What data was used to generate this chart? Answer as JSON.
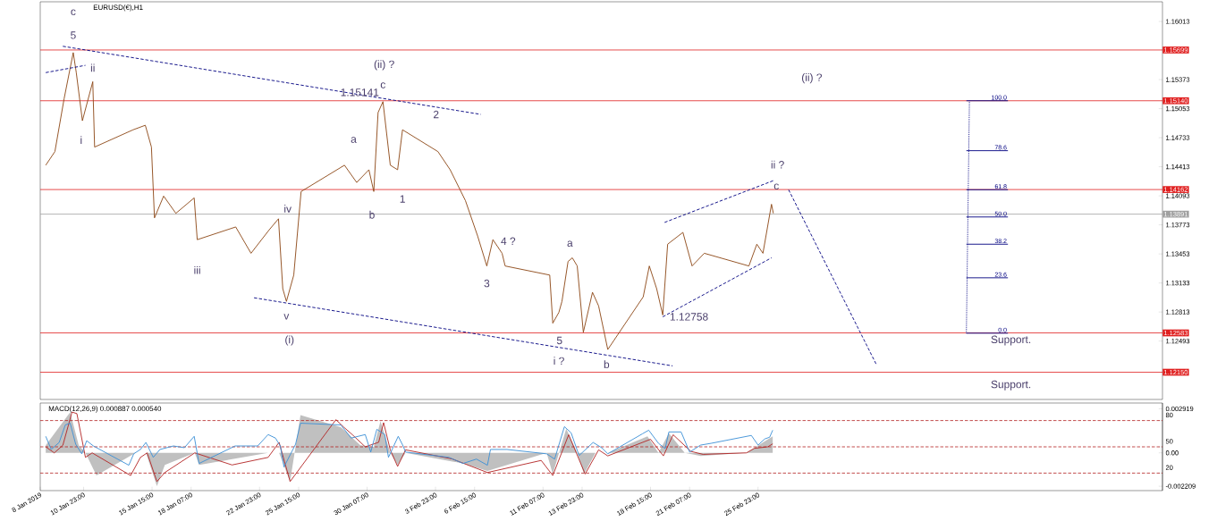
{
  "chart_data": [
    {
      "type": "line",
      "title": "EURUSD(€),H1",
      "xlim": [
        "2019-01-08T00:00",
        "2019-03-25T13:00"
      ],
      "ylim": [
        1.1185,
        1.1623
      ],
      "tick_labels": "y",
      "yticks": [
        1.16013,
        1.15373,
        1.15053,
        1.14733,
        1.14413,
        1.14093,
        1.13773,
        1.13453,
        1.13133,
        1.12813,
        1.12493
      ],
      "series": [
        {
          "color": "#8b4513",
          "x": [
            "2019-01-08T09:00",
            "2019-01-09T00:00",
            "2019-01-09T15:00",
            "2019-01-10T06:00",
            "2019-01-10T11:00",
            "2019-01-10T21:00",
            "2019-01-11T14:00",
            "2019-01-11T17:00",
            "2019-01-14T08:00",
            "2019-01-15T04:00",
            "2019-01-15T14:00",
            "2019-01-15T19:00",
            "2019-01-16T10:00",
            "2019-01-17T06:00",
            "2019-01-18T12:00",
            "2019-01-18T17:00",
            "2019-01-21T08:00",
            "2019-01-22T09:00",
            "2019-01-23T15:00",
            "2019-01-24T06:00",
            "2019-01-24T13:00",
            "2019-01-24T19:00",
            "2019-01-25T07:00",
            "2019-01-25T19:00",
            "2019-01-28T18:00",
            "2019-01-29T14:00",
            "2019-01-30T10:00",
            "2019-01-30T18:00",
            "2019-01-31T01:00",
            "2019-01-31T09:00",
            "2019-01-31T21:00",
            "2019-02-01T09:00",
            "2019-02-01T17:00",
            "2019-02-04T03:00",
            "2019-02-04T23:00",
            "2019-02-06T00:00",
            "2019-02-06T20:00",
            "2019-02-07T11:00",
            "2019-02-07T21:00",
            "2019-02-08T12:00",
            "2019-02-08T17:00",
            "2019-02-11T18:00",
            "2019-02-11T23:00",
            "2019-02-12T09:00",
            "2019-02-12T14:00",
            "2019-02-13T00:00",
            "2019-02-13T07:00",
            "2019-02-13T15:00",
            "2019-02-14T01:00",
            "2019-02-14T16:00",
            "2019-02-15T02:00",
            "2019-02-15T17:00",
            "2019-02-18T03:00",
            "2019-02-18T13:00",
            "2019-02-19T01:00",
            "2019-02-19T11:00",
            "2019-02-19T19:00",
            "2019-02-20T20:00",
            "2019-02-21T11:00",
            "2019-02-22T07:00",
            "2019-02-25T08:00",
            "2019-02-25T21:00",
            "2019-02-26T07:00",
            "2019-02-26T21:00",
            "2019-02-27T00:00"
          ],
          "values": [
            1.1443,
            1.1458,
            1.1516,
            1.1567,
            1.1545,
            1.1492,
            1.1535,
            1.1463,
            1.1482,
            1.1487,
            1.1463,
            1.1385,
            1.1409,
            1.139,
            1.1407,
            1.1361,
            1.1375,
            1.1346,
            1.1372,
            1.1384,
            1.1307,
            1.1293,
            1.1322,
            1.1414,
            1.1443,
            1.1424,
            1.1438,
            1.1414,
            1.1501,
            1.1513,
            1.1443,
            1.1438,
            1.1482,
            1.1458,
            1.1438,
            1.1404,
            1.1365,
            1.1332,
            1.1361,
            1.1346,
            1.1332,
            1.1322,
            1.1269,
            1.1281,
            1.1293,
            1.1337,
            1.1341,
            1.1332,
            1.1259,
            1.1303,
            1.1288,
            1.124,
            1.1298,
            1.1332,
            1.1307,
            1.1278,
            1.1356,
            1.1369,
            1.1332,
            1.1346,
            1.1332,
            1.1356,
            1.1346,
            1.14,
            1.139
          ]
        },
        {
          "color": "#000080",
          "line_style": "dashed",
          "x": [
            "2019-01-09T13:00",
            "2019-02-07T01:00"
          ],
          "values": [
            1.1574,
            1.1499
          ]
        },
        {
          "color": "#000080",
          "line_style": "dashed",
          "x": [
            "2019-01-08T09:00",
            "2019-01-11T02:00"
          ],
          "values": [
            1.1545,
            1.1553
          ]
        },
        {
          "color": "#000080",
          "line_style": "dashed",
          "x": [
            "2019-01-22T14:00",
            "2019-02-20T03:00"
          ],
          "values": [
            1.1297,
            1.1222
          ]
        },
        {
          "color": "#000080",
          "line_style": "dashed",
          "x": [
            "2019-02-19T14:00",
            "2019-02-27T00:00"
          ],
          "values": [
            1.138,
            1.1426
          ]
        },
        {
          "color": "#000080",
          "line_style": "dashed",
          "x": [
            "2019-02-19T11:00",
            "2019-02-26T21:00"
          ],
          "values": [
            1.1276,
            1.1341
          ]
        },
        {
          "color": "#000080",
          "line_style": "dashed",
          "x": [
            "2019-02-28T01:00",
            "2019-03-06T01:00"
          ],
          "values": [
            1.1416,
            1.1223
          ]
        },
        {
          "color": "#000080",
          "line_style": "dotted",
          "x": [
            "2019-03-12T04:00",
            "2019-03-12T09:00"
          ],
          "values": [
            1.1258,
            1.1514
          ]
        },
        {
          "name": "100.0",
          "color": "#000080",
          "x": [
            "2019-03-12T04:00",
            "2019-03-15T00:00"
          ],
          "values": [
            1.1514,
            1.1514
          ]
        },
        {
          "name": "78.6",
          "color": "#000080",
          "x": [
            "2019-03-12T04:00",
            "2019-03-15T00:00"
          ],
          "values": [
            1.1459,
            1.1459
          ]
        },
        {
          "name": "61.8",
          "color": "#000080",
          "x": [
            "2019-03-12T04:00",
            "2019-03-15T00:00"
          ],
          "values": [
            1.1416,
            1.1416
          ]
        },
        {
          "name": "50.0",
          "color": "#000080",
          "x": [
            "2019-03-12T04:00",
            "2019-03-15T00:00"
          ],
          "values": [
            1.1386,
            1.1386
          ]
        },
        {
          "name": "38.2",
          "color": "#000080",
          "x": [
            "2019-03-12T04:00",
            "2019-03-15T00:00"
          ],
          "values": [
            1.1356,
            1.1356
          ]
        },
        {
          "name": "23.6",
          "color": "#000080",
          "x": [
            "2019-03-12T04:00",
            "2019-03-15T00:00"
          ],
          "values": [
            1.1319,
            1.1319
          ]
        },
        {
          "name": "0.0",
          "color": "#000080",
          "x": [
            "2019-03-12T04:00",
            "2019-03-15T00:00"
          ],
          "values": [
            1.1258,
            1.1258
          ]
        }
      ],
      "ref_lines": [
        {
          "axis": "y",
          "value": 1.15699,
          "label": "1.15699",
          "color": "#e02020"
        },
        {
          "axis": "y",
          "value": 1.1514,
          "label": "1.15140",
          "color": "#e02020"
        },
        {
          "axis": "y",
          "value": 1.14162,
          "label": "1.14162",
          "color": "#e02020"
        },
        {
          "axis": "y",
          "value": 1.13891,
          "label": "1.13891",
          "color": "#a0a0a0"
        },
        {
          "axis": "y",
          "value": 1.12583,
          "label": "1.12583",
          "color": "#e02020"
        },
        {
          "axis": "y",
          "value": 1.1215,
          "label": "1.12150",
          "color": "#e02020"
        }
      ],
      "annotations": [
        "c",
        "5",
        "ii",
        "i",
        "iii",
        "iv",
        "v",
        "(i)",
        "a",
        "b",
        "1.15141",
        "c",
        "(ii) ?",
        "2",
        "1",
        "3",
        "4 ?",
        "a",
        "5",
        "i ?",
        "b",
        "1.12758",
        "ii ?",
        "c",
        "(ii) ?",
        "Support.",
        "Support."
      ]
    },
    {
      "type": "line",
      "title": "MACD(12,26,9) 0.000887 0.000540",
      "xlim": [
        "2019-01-08T00:00",
        "2019-03-25T13:00"
      ],
      "ylim": [
        -0.0025,
        0.0033
      ],
      "xticks": [
        {
          "value": "2019-01-08",
          "label": "8 Jan 2019"
        },
        {
          "value": "2019-01-10T23:00",
          "label": "10 Jan 23:00"
        },
        {
          "value": "2019-01-15T15:00",
          "label": "15 Jan 15:00"
        },
        {
          "value": "2019-01-18T07:00",
          "label": "18 Jan 07:00"
        },
        {
          "value": "2019-01-22T23:00",
          "label": "22 Jan 23:00"
        },
        {
          "value": "2019-01-25T15:00",
          "label": "25 Jan 15:00"
        },
        {
          "value": "2019-01-30T07:00",
          "label": "30 Jan 07:00"
        },
        {
          "value": "2019-02-03T23:00",
          "label": "3 Feb 23:00"
        },
        {
          "value": "2019-02-06T15:00",
          "label": "6 Feb 15:00"
        },
        {
          "value": "2019-02-11T07:00",
          "label": "11 Feb 07:00"
        },
        {
          "value": "2019-02-13T23:00",
          "label": "13 Feb 23:00"
        },
        {
          "value": "2019-02-18T15:00",
          "label": "18 Feb 15:00"
        },
        {
          "value": "2019-02-21T07:00",
          "label": "21 Feb 07:00"
        },
        {
          "value": "2019-02-25T23:00",
          "label": "25 Feb 23:00"
        }
      ],
      "yticks": [
        0.002919,
        {
          "value": 0,
          "label": "0.00"
        },
        -0.002209
      ],
      "y2lim": [
        0,
        100
      ],
      "y2ticks": [
        20,
        50,
        80
      ],
      "series": [
        {
          "type": "area",
          "color": "#c0c0c0",
          "x": [
            "2019-01-08T09:00",
            "2019-01-10T01:00",
            "2019-01-10T15:00",
            "2019-01-11T02:00",
            "2019-01-11T20:00",
            "2019-01-14T12:00",
            "2019-01-15T05:00",
            "2019-01-15T23:00",
            "2019-01-16T12:00",
            "2019-01-18T13:00",
            "2019-01-18T20:00",
            "2019-01-23T13:00",
            "2019-01-24T07:00",
            "2019-01-25T01:00",
            "2019-01-25T18:00",
            "2019-01-28T12:00",
            "2019-01-29T20:00",
            "2019-01-30T18:00",
            "2019-01-31T05:00",
            "2019-01-31T21:00",
            "2019-02-01T09:00",
            "2019-02-01T22:00",
            "2019-02-05T20:00",
            "2019-02-07T12:00",
            "2019-02-11T13:00",
            "2019-02-11T23:00",
            "2019-02-12T21:00",
            "2019-02-13T15:00",
            "2019-02-14T02:00",
            "2019-02-14T21:00",
            "2019-02-15T17:00",
            "2019-02-18T10:00",
            "2019-02-19T04:00",
            "2019-02-19T21:00",
            "2019-02-20T23:00",
            "2019-02-22T01:00",
            "2019-02-25T04:00",
            "2019-02-26T23:00"
          ],
          "values": [
            0.0005,
            0.0027,
            0.0005,
            0,
            -0.0015,
            0,
            0,
            -0.0022,
            -0.0008,
            0,
            -0.0008,
            0,
            0,
            -0.0019,
            0.0025,
            0.0017,
            0.0005,
            0.0004,
            0.0021,
            0,
            -0.0008,
            0,
            -0.0007,
            -0.0012,
            0,
            -0.0014,
            0.0016,
            0,
            -0.0014,
            0,
            0,
            0.0011,
            0,
            0.0013,
            0,
            -0.0002,
            0,
            0.0011
          ]
        },
        {
          "color": "#b22222",
          "x": [
            "2019-01-08T09:00",
            "2019-01-08T23:00",
            "2019-01-09T13:00",
            "2019-01-10T04:00",
            "2019-01-10T12:00",
            "2019-01-11T02:00",
            "2019-01-11T13:00",
            "2019-01-14T04:00",
            "2019-01-14T20:00",
            "2019-01-15T07:00",
            "2019-01-15T23:00",
            "2019-01-16T12:00",
            "2019-01-18T13:00",
            "2019-01-21T02:00",
            "2019-01-23T13:00",
            "2019-01-24T07:00",
            "2019-01-25T01:00",
            "2019-01-28T04:00",
            "2019-01-28T17:00",
            "2019-01-29T07:00",
            "2019-01-30T04:00",
            "2019-01-31T02:00",
            "2019-01-31T10:00",
            "2019-01-31T21:00",
            "2019-02-01T09:00",
            "2019-02-01T22:00",
            "2019-02-05T02:00",
            "2019-02-07T12:00",
            "2019-02-11T04:00",
            "2019-02-11T23:00",
            "2019-02-13T01:00",
            "2019-02-14T04:00",
            "2019-02-15T02:00",
            "2019-02-15T17:00",
            "2019-02-18T15:00",
            "2019-02-19T12:00",
            "2019-02-20T04:00",
            "2019-02-21T09:00",
            "2019-02-22T05:00",
            "2019-02-25T04:00",
            "2019-02-25T17:00",
            "2019-02-26T15:00",
            "2019-02-26T23:00"
          ],
          "values": [
            0.0004,
            0,
            0.0005,
            0.0027,
            0.0026,
            -0.0003,
            0,
            -0.0015,
            -0.0003,
            0,
            -0.0019,
            -0.0013,
            0,
            -0.0008,
            -0.0003,
            0.0007,
            -0.0019,
            0.0022,
            0.0017,
            0.0012,
            0.0004,
            0.0007,
            0.002,
            0.0002,
            -0.0009,
            0.0002,
            -0.0004,
            -0.0013,
            -0.0005,
            -0.0015,
            0.0012,
            -0.0014,
            0.0002,
            -0.0002,
            0.0009,
            -0.0002,
            0.0012,
            0.0001,
            -0.0001,
            0,
            0.0003,
            0.0004,
            0.0006
          ]
        },
        {
          "color": "#3a8fd6",
          "axis": "y2",
          "x": [
            "2019-01-08T09:00",
            "2019-01-08T18:00",
            "2019-01-09T07:00",
            "2019-01-09T17:00",
            "2019-01-10T01:00",
            "2019-01-10T10:00",
            "2019-01-10T20:00",
            "2019-01-11T04:00",
            "2019-01-11T15:00",
            "2019-01-14T01:00",
            "2019-01-14T09:00",
            "2019-01-14T20:00",
            "2019-01-15T05:00",
            "2019-01-15T17:00",
            "2019-01-16T04:00",
            "2019-01-17T02:00",
            "2019-01-17T20:00",
            "2019-01-18T12:00",
            "2019-01-18T20:00",
            "2019-01-21T07:00",
            "2019-01-22T20:00",
            "2019-01-23T13:00",
            "2019-01-24T01:00",
            "2019-01-24T09:00",
            "2019-01-24T15:00",
            "2019-01-25T10:00",
            "2019-01-25T18:00",
            "2019-01-28T12:00",
            "2019-01-29T05:00",
            "2019-01-30T04:00",
            "2019-01-30T13:00",
            "2019-01-30T23:00",
            "2019-01-31T12:00",
            "2019-01-31T18:00",
            "2019-02-01T10:00",
            "2019-02-01T18:00",
            "2019-02-01T22:00",
            "2019-02-04T21:00",
            "2019-02-05T20:00",
            "2019-02-06T18:00",
            "2019-02-07T12:00",
            "2019-02-07T17:00",
            "2019-02-08T20:00",
            "2019-02-11T13:00",
            "2019-02-12T02:00",
            "2019-02-12T18:00",
            "2019-02-13T05:00",
            "2019-02-13T18:00",
            "2019-02-14T17:00",
            "2019-02-15T07:00",
            "2019-02-15T17:00",
            "2019-02-18T02:00",
            "2019-02-18T12:00",
            "2019-02-19T04:00",
            "2019-02-19T15:00",
            "2019-02-19T21:00",
            "2019-02-20T17:00",
            "2019-02-21T07:00",
            "2019-02-22T01:00",
            "2019-02-22T18:00",
            "2019-02-25T12:00",
            "2019-02-25T23:00",
            "2019-02-26T10:00",
            "2019-02-26T18:00",
            "2019-02-26T23:00"
          ],
          "values": [
            62,
            47,
            55,
            75,
            77,
            53,
            42,
            57,
            51,
            29,
            42,
            47,
            55,
            38,
            47,
            51,
            49,
            62,
            31,
            51,
            51,
            64,
            60,
            51,
            27,
            53,
            77,
            75,
            60,
            64,
            44,
            70,
            64,
            38,
            62,
            51,
            44,
            38,
            31,
            36,
            29,
            47,
            47,
            42,
            36,
            73,
            66,
            40,
            55,
            49,
            42,
            65,
            69,
            54,
            48,
            67,
            67,
            44,
            52,
            54,
            63,
            52,
            59,
            61,
            69
          ]
        }
      ],
      "ref_lines": [
        {
          "axis": "y2",
          "value": 80,
          "color": "#b22222",
          "line_style": "dashed"
        },
        {
          "axis": "y2",
          "value": 50,
          "color": "#b22222",
          "line_style": "dashed"
        },
        {
          "axis": "y2",
          "value": 20,
          "color": "#b22222",
          "line_style": "dashed"
        }
      ]
    }
  ]
}
